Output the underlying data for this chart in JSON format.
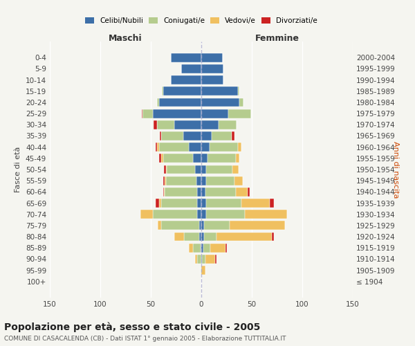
{
  "age_groups": [
    "100+",
    "95-99",
    "90-94",
    "85-89",
    "80-84",
    "75-79",
    "70-74",
    "65-69",
    "60-64",
    "55-59",
    "50-54",
    "45-49",
    "40-44",
    "35-39",
    "30-34",
    "25-29",
    "20-24",
    "15-19",
    "10-14",
    "5-9",
    "0-4"
  ],
  "birth_years": [
    "≤ 1904",
    "1905-1909",
    "1910-1914",
    "1915-1919",
    "1920-1924",
    "1925-1929",
    "1930-1934",
    "1935-1939",
    "1940-1944",
    "1945-1949",
    "1950-1954",
    "1955-1959",
    "1960-1964",
    "1965-1969",
    "1970-1974",
    "1975-1979",
    "1980-1984",
    "1985-1989",
    "1990-1994",
    "1995-1999",
    "2000-2004"
  ],
  "maschi": {
    "celibi": [
      0,
      0,
      0,
      1,
      2,
      2,
      4,
      4,
      4,
      5,
      6,
      8,
      12,
      18,
      27,
      48,
      42,
      38,
      30,
      20,
      30
    ],
    "coniugati": [
      0,
      1,
      4,
      7,
      15,
      38,
      44,
      36,
      32,
      30,
      28,
      30,
      30,
      22,
      17,
      10,
      2,
      1,
      0,
      0,
      0
    ],
    "vedovi": [
      0,
      0,
      2,
      4,
      10,
      3,
      12,
      2,
      1,
      1,
      1,
      2,
      2,
      0,
      0,
      0,
      0,
      0,
      0,
      0,
      0
    ],
    "divorziati": [
      0,
      0,
      0,
      0,
      0,
      0,
      0,
      3,
      1,
      2,
      2,
      2,
      1,
      1,
      3,
      1,
      0,
      0,
      0,
      0,
      0
    ]
  },
  "femmine": {
    "nubili": [
      0,
      0,
      1,
      2,
      3,
      3,
      5,
      5,
      4,
      5,
      5,
      6,
      8,
      10,
      17,
      27,
      38,
      36,
      22,
      22,
      21
    ],
    "coniugate": [
      0,
      0,
      3,
      7,
      12,
      25,
      38,
      35,
      30,
      28,
      26,
      28,
      28,
      20,
      18,
      22,
      4,
      2,
      0,
      0,
      0
    ],
    "vedove": [
      0,
      4,
      10,
      15,
      55,
      55,
      42,
      28,
      12,
      8,
      6,
      4,
      4,
      0,
      0,
      0,
      0,
      0,
      0,
      0,
      0
    ],
    "divorziate": [
      0,
      0,
      1,
      1,
      2,
      0,
      0,
      4,
      2,
      0,
      0,
      0,
      0,
      3,
      0,
      0,
      0,
      0,
      0,
      0,
      0
    ]
  },
  "colors": {
    "celibi_nubili": "#3d6fa8",
    "coniugati": "#b5cc8e",
    "vedovi": "#f0c060",
    "divorziati": "#cc2222"
  },
  "xlim": 150,
  "title": "Popolazione per età, sesso e stato civile - 2005",
  "subtitle": "COMUNE DI CASACALENDA (CB) - Dati ISTAT 1° gennaio 2005 - Elaborazione TUTTITALIA.IT",
  "ylabel_left": "Fasce di età",
  "ylabel_right": "Anni di nascita",
  "xlabel_left": "Maschi",
  "xlabel_right": "Femmine",
  "bg_color": "#f5f5f0"
}
